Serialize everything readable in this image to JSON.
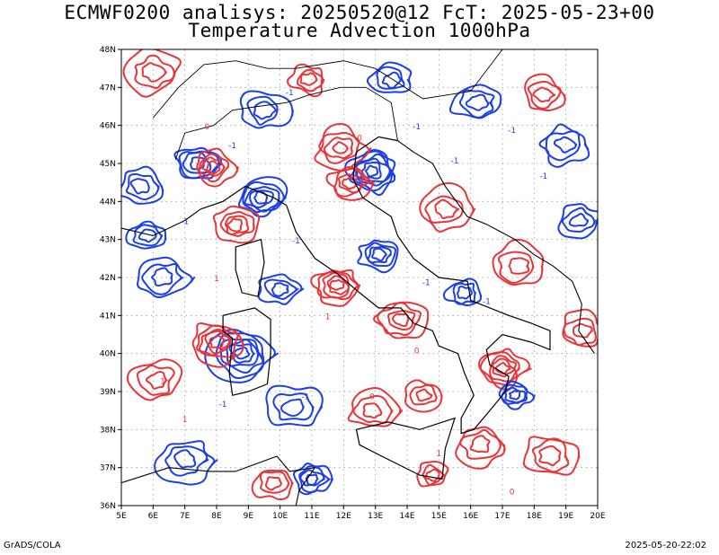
{
  "header": {
    "line1": "ECMWF0200 analisys: 20250520@12 FcT: 2025-05-23+00",
    "line2": "Temperature Advection 1000hPa"
  },
  "footer": {
    "credit": "GrADS/COLA",
    "timestamp": "2025-05-20-22:02"
  },
  "map": {
    "lon_labels": [
      "5E",
      "6E",
      "7E",
      "8E",
      "9E",
      "10E",
      "11E",
      "12E",
      "13E",
      "14E",
      "15E",
      "16E",
      "17E",
      "18E",
      "19E",
      "20E"
    ],
    "lat_labels": [
      "36N",
      "37N",
      "38N",
      "39N",
      "40N",
      "41N",
      "42N",
      "43N",
      "44N",
      "45N",
      "46N",
      "47N",
      "48N"
    ],
    "lon_range": [
      5,
      20
    ],
    "lat_range": [
      36,
      48
    ],
    "grid": "dotted",
    "colors": {
      "warm_advection": "#e8353a",
      "cold_advection": "#1d3fe6",
      "coastline": "#000000",
      "grid": "#9a9a9a"
    },
    "contour_labels": [
      {
        "text": "0",
        "lon": 7.7,
        "lat": 45.9
      },
      {
        "text": "-1",
        "lon": 8.5,
        "lat": 45.4
      },
      {
        "text": "-1",
        "lon": 7.0,
        "lat": 43.4
      },
      {
        "text": "-1",
        "lon": 10.3,
        "lat": 46.8
      },
      {
        "text": "0",
        "lon": 12.5,
        "lat": 45.6
      },
      {
        "text": "-1",
        "lon": 14.3,
        "lat": 45.9
      },
      {
        "text": "-1",
        "lon": 12.5,
        "lat": 44.6
      },
      {
        "text": "-1",
        "lon": 15.5,
        "lat": 45.0
      },
      {
        "text": "-1",
        "lon": 14.6,
        "lat": 41.8
      },
      {
        "text": "-1",
        "lon": 16.5,
        "lat": 41.3
      },
      {
        "text": "-1",
        "lon": 17.3,
        "lat": 45.8
      },
      {
        "text": "-1",
        "lon": 18.3,
        "lat": 44.6
      },
      {
        "text": "-1",
        "lon": 10.5,
        "lat": 42.9
      },
      {
        "text": "-1",
        "lon": 10.8,
        "lat": 38.8
      },
      {
        "text": "-1",
        "lon": 8.2,
        "lat": 38.6
      },
      {
        "text": "1",
        "lon": 8.0,
        "lat": 41.9
      },
      {
        "text": "1",
        "lon": 7.0,
        "lat": 38.2
      },
      {
        "text": "1",
        "lon": 6.3,
        "lat": 39.2
      },
      {
        "text": "1",
        "lon": 11.5,
        "lat": 40.9
      },
      {
        "text": "0",
        "lon": 14.3,
        "lat": 40.0
      },
      {
        "text": "0",
        "lon": 12.9,
        "lat": 38.8
      },
      {
        "text": "1",
        "lon": 16.7,
        "lat": 39.6
      },
      {
        "text": "1",
        "lon": 15.0,
        "lat": 37.3
      },
      {
        "text": "0",
        "lon": 17.3,
        "lat": 36.3
      }
    ]
  }
}
